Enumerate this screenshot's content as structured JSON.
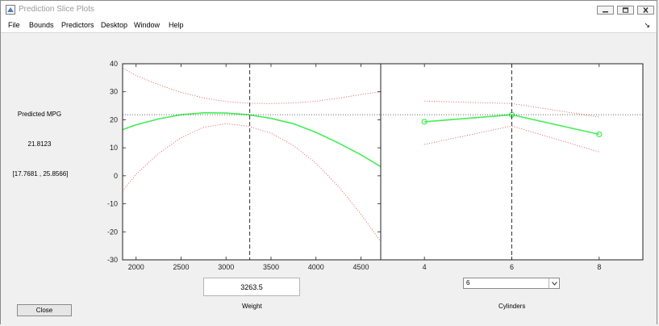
{
  "window": {
    "title": "Prediction Slice Plots",
    "icon": "matlab-figure-icon",
    "controls": [
      "minimize-icon",
      "maximize-icon",
      "close-icon"
    ]
  },
  "menu": {
    "items": [
      {
        "label": "File"
      },
      {
        "label": "Bounds"
      },
      {
        "label": "Predictors"
      },
      {
        "label": "Desktop"
      },
      {
        "label": "Window"
      },
      {
        "label": "Help"
      }
    ],
    "dock_arrow": "↘"
  },
  "prediction": {
    "label": "Predicted MPG",
    "value": "21.8123",
    "interval": "[17.7681 , 25.8566]"
  },
  "controls": {
    "weight_value": "3263.5",
    "weight_label": "Weight",
    "cylinders_selected": "6",
    "cylinders_label": "Cylinders",
    "close_label": "Close"
  },
  "colors": {
    "prediction_curve": "#44ee55",
    "confidence_bounds": "#e05050",
    "reference_lines": "#333333"
  },
  "chart_data": [
    {
      "type": "line",
      "title": "",
      "xlabel": "Weight",
      "ylabel": "",
      "xlim": [
        1850,
        4720
      ],
      "ylim": [
        -30,
        40
      ],
      "xticks": [
        2000,
        2500,
        3000,
        3500,
        4000,
        4500
      ],
      "yticks": [
        -30,
        -20,
        -10,
        0,
        10,
        20,
        30,
        40
      ],
      "grid": false,
      "current_x": 3263.5,
      "current_y": 21.8123,
      "series": [
        {
          "role": "prediction",
          "x": [
            1850,
            2000,
            2250,
            2500,
            2750,
            3000,
            3250,
            3500,
            3750,
            4000,
            4250,
            4500,
            4720
          ],
          "values": [
            16.5,
            18.2,
            20.3,
            21.8,
            22.5,
            22.4,
            21.8,
            20.5,
            18.6,
            15.5,
            11.7,
            7.5,
            3.3
          ]
        },
        {
          "role": "upper-bound",
          "x": [
            1850,
            2000,
            2250,
            2500,
            2750,
            3000,
            3250,
            3500,
            3750,
            4000,
            4250,
            4500,
            4720
          ],
          "values": [
            38.5,
            35.8,
            32.5,
            29.8,
            27.8,
            26.5,
            25.9,
            25.8,
            26.0,
            26.6,
            27.7,
            29.0,
            30.0
          ]
        },
        {
          "role": "lower-bound",
          "x": [
            1850,
            2000,
            2250,
            2500,
            2750,
            3000,
            3250,
            3500,
            3750,
            4000,
            4250,
            4500,
            4720
          ],
          "values": [
            -5.5,
            0.6,
            8.0,
            13.6,
            17.3,
            18.6,
            17.7,
            15.2,
            10.8,
            4.5,
            -3.8,
            -13.7,
            -23.5
          ]
        }
      ]
    },
    {
      "type": "line",
      "title": "",
      "xlabel": "Cylinders",
      "ylabel": "",
      "xlim": [
        3,
        9
      ],
      "ylim": [
        -30,
        40
      ],
      "xticks": [
        4,
        6,
        8
      ],
      "grid": false,
      "current_x": 6,
      "current_y": 21.8123,
      "series": [
        {
          "role": "prediction",
          "x": [
            4,
            6,
            8
          ],
          "values": [
            19.3,
            21.8,
            14.8
          ]
        },
        {
          "role": "upper-bound",
          "x": [
            4,
            6,
            8
          ],
          "values": [
            26.7,
            25.8,
            21.0
          ]
        },
        {
          "role": "lower-bound",
          "x": [
            4,
            6,
            8
          ],
          "values": [
            11.2,
            17.8,
            8.5
          ]
        }
      ]
    }
  ]
}
